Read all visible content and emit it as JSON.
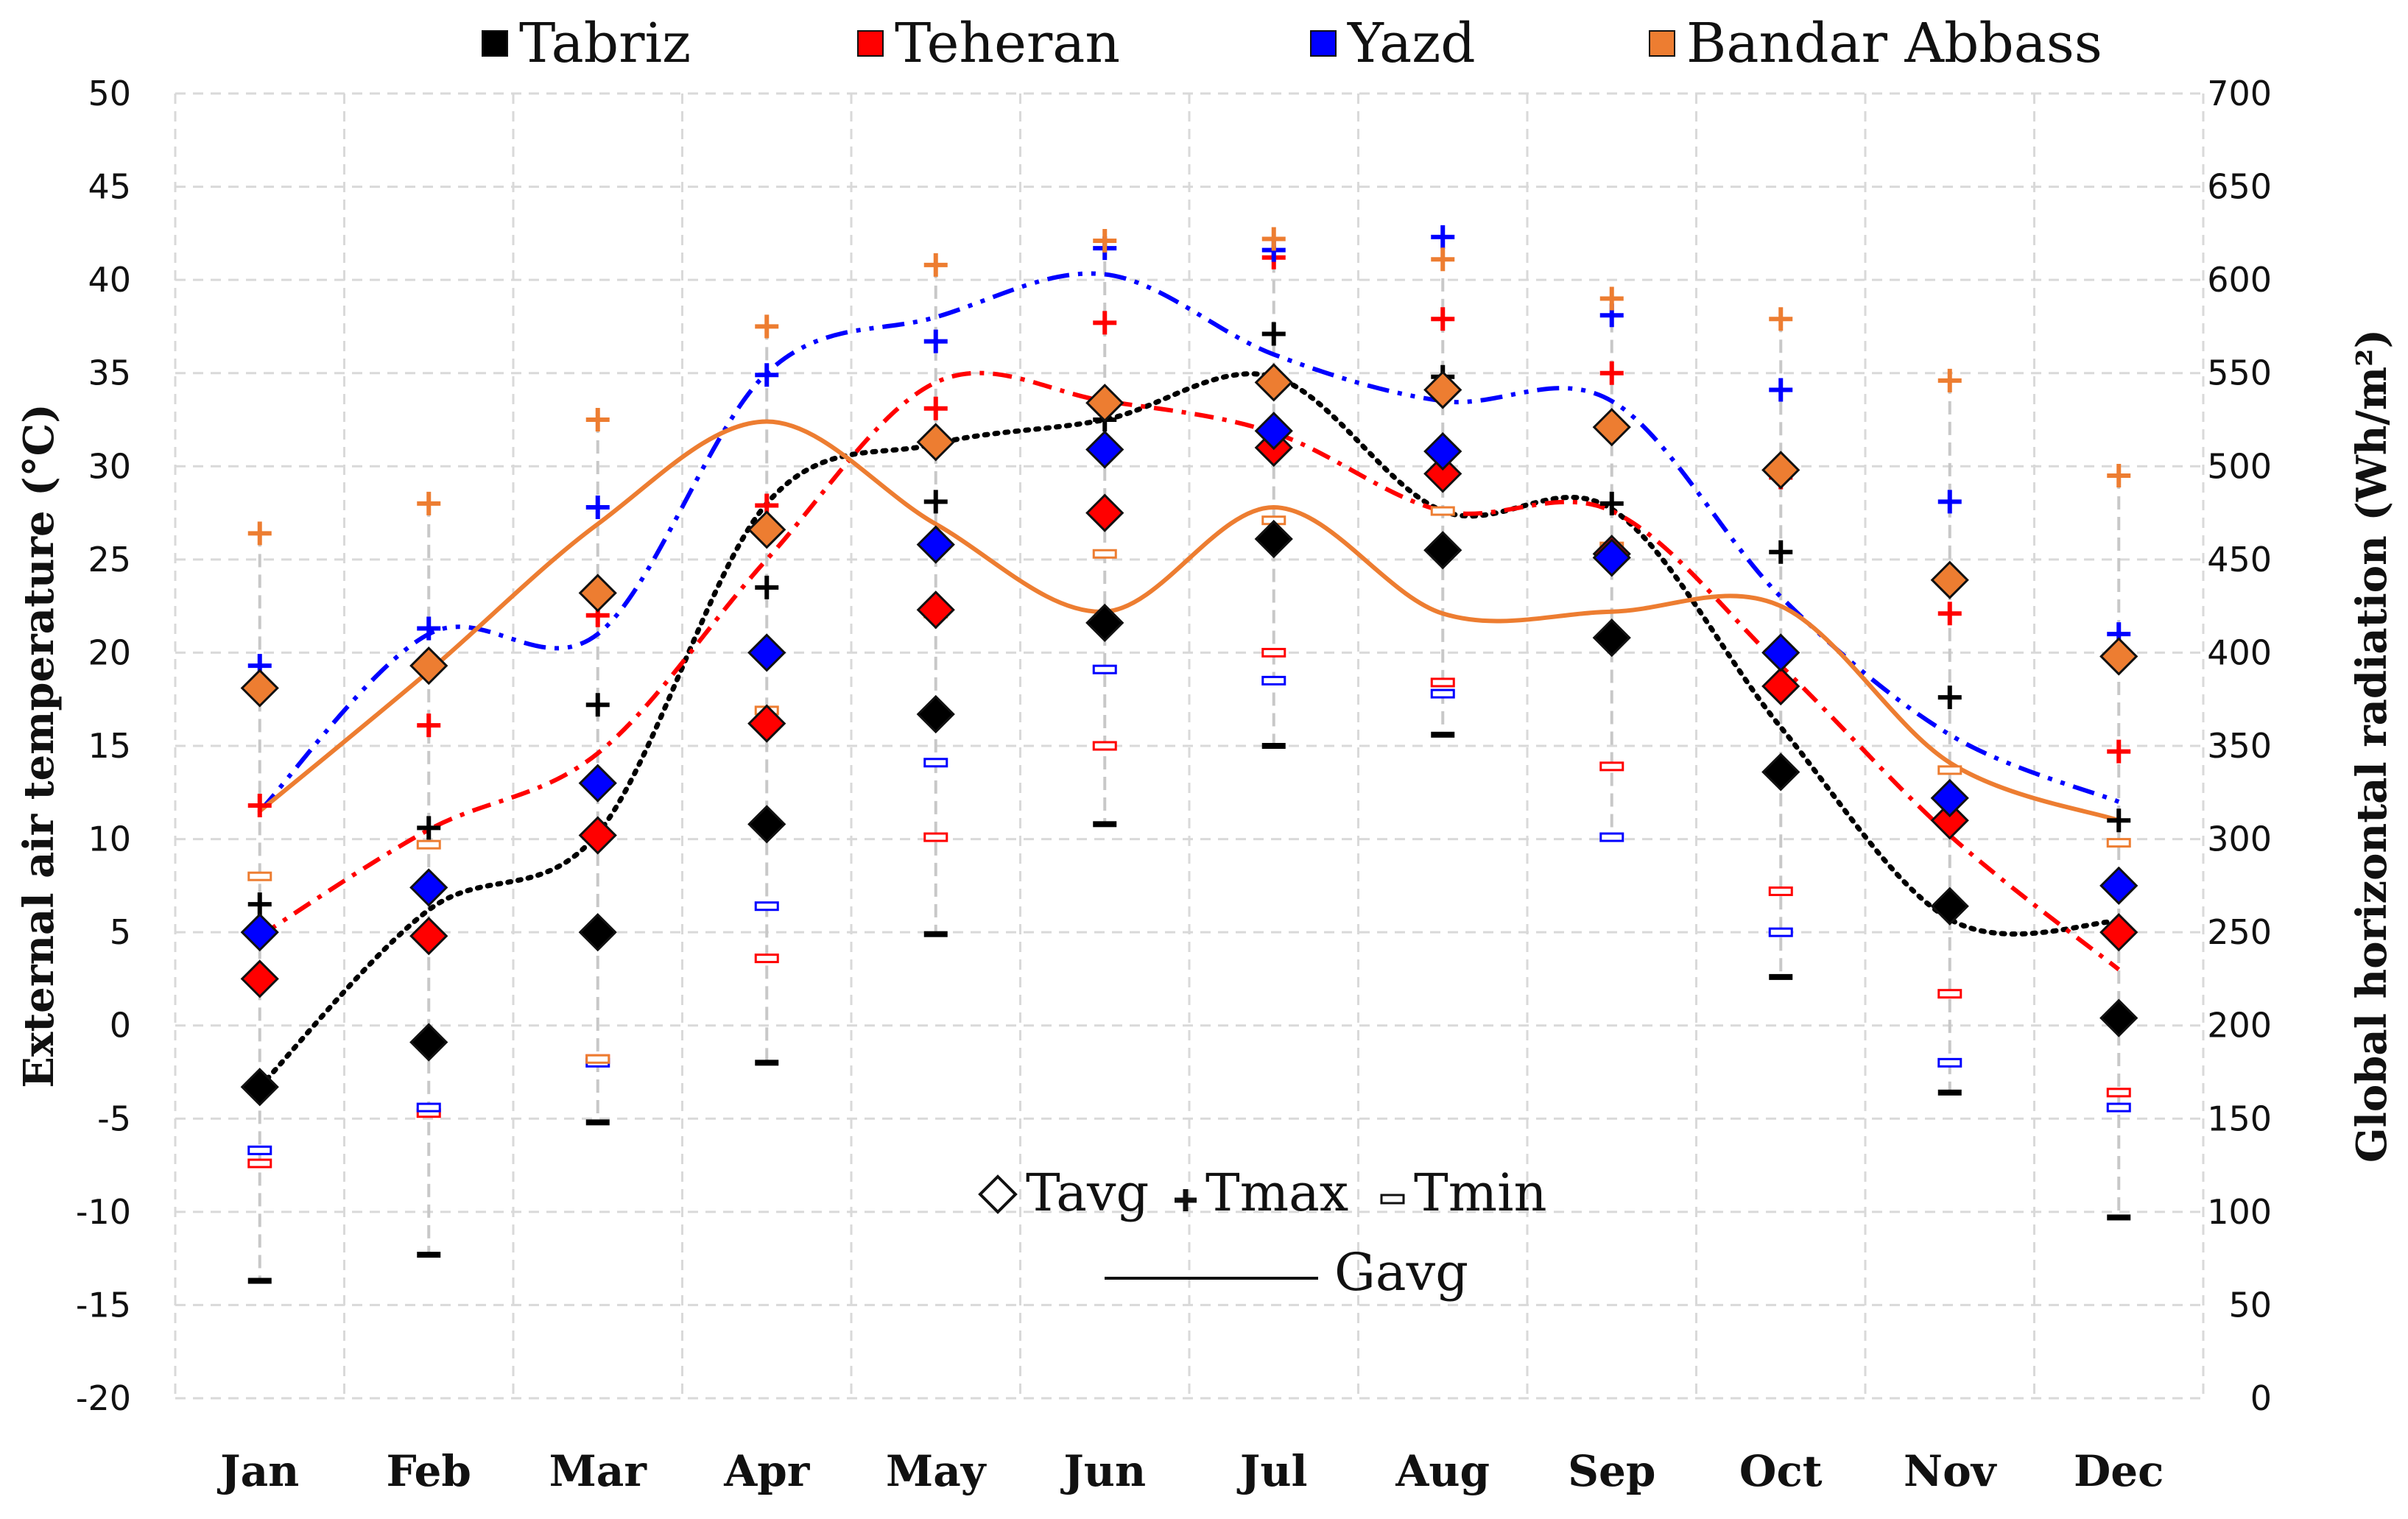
{
  "chart_data": {
    "type": "line",
    "categories": [
      "Jan",
      "Feb",
      "Mar",
      "Apr",
      "May",
      "Jun",
      "Jul",
      "Aug",
      "Sep",
      "Oct",
      "Nov",
      "Dec"
    ],
    "ylabel": "External air temperature (°C)",
    "y2label": "Global horizontal radiation (Wh/m²)",
    "ylim": [
      -20,
      50
    ],
    "y_ticks": [
      "50",
      "45",
      "40",
      "35",
      "30",
      "25",
      "20",
      "15",
      "10",
      "5",
      "0",
      "-5",
      "-10",
      "-15",
      "-20"
    ],
    "y2lim": [
      0,
      700
    ],
    "y2_ticks": [
      "700",
      "650",
      "600",
      "550",
      "500",
      "450",
      "400",
      "350",
      "300",
      "250",
      "200",
      "150",
      "100",
      "50",
      "0"
    ],
    "legend": {
      "cities": [
        "Tabriz",
        "Teheran",
        "Yazd",
        "Bandar Abbass"
      ],
      "tavg": "Tavg",
      "tmax": "Tmax",
      "tmin": "Tmin",
      "gavg": "Gavg"
    },
    "colors": {
      "Tabriz": "#000000",
      "Teheran": "#ff0000",
      "Yazd": "#0000ff",
      "Bandar Abbass": "#ed7d31",
      "grid": "#d9d9d9"
    },
    "series": [
      {
        "name": "Tabriz",
        "tavg": [
          -3.3,
          -0.9,
          5.0,
          10.8,
          16.7,
          21.6,
          26.1,
          25.5,
          20.8,
          13.6,
          6.4,
          0.4
        ],
        "tmax": [
          6.5,
          10.6,
          17.2,
          23.5,
          28.1,
          32.5,
          37.1,
          34.8,
          28.0,
          25.4,
          17.6,
          11.0
        ],
        "tmin": [
          -13.7,
          -12.3,
          -5.2,
          -2.0,
          4.9,
          10.8,
          15.0,
          15.6,
          10.1,
          2.6,
          -3.6,
          -10.3
        ],
        "gavg": [
          167,
          262,
          303,
          480,
          512,
          525,
          548,
          476,
          477,
          360,
          257,
          256
        ]
      },
      {
        "name": "Teheran",
        "tavg": [
          2.5,
          4.8,
          10.2,
          16.2,
          22.3,
          27.5,
          31.0,
          29.6,
          25.3,
          18.2,
          11.0,
          5.0
        ],
        "tmax": [
          11.8,
          16.1,
          22.0,
          27.9,
          33.1,
          37.7,
          41.2,
          37.9,
          35.0,
          29.4,
          22.1,
          14.7
        ],
        "tmin": [
          -7.4,
          -4.7,
          -1.8,
          3.6,
          10.1,
          15.0,
          20.0,
          18.4,
          13.9,
          7.2,
          1.7,
          -3.6
        ],
        "gavg": [
          248,
          305,
          346,
          450,
          545,
          535,
          518,
          476,
          476,
          393,
          302,
          230
        ]
      },
      {
        "name": "Yazd",
        "tavg": [
          5.0,
          7.4,
          13.0,
          20.0,
          25.8,
          30.9,
          31.9,
          30.8,
          25.1,
          20.0,
          12.2,
          7.5
        ],
        "tmax": [
          19.3,
          21.3,
          27.8,
          34.9,
          36.7,
          41.7,
          41.6,
          42.3,
          38.1,
          34.1,
          28.1,
          21.0
        ],
        "tmin": [
          -6.7,
          -4.4,
          -2.0,
          6.4,
          14.1,
          19.1,
          18.5,
          17.8,
          10.1,
          5.0,
          -2.0,
          -4.4
        ],
        "gavg": [
          315,
          410,
          410,
          550,
          580,
          603,
          560,
          535,
          535,
          430,
          356,
          320
        ]
      },
      {
        "name": "Bandar Abbass",
        "tavg": [
          18.1,
          19.3,
          23.2,
          26.6,
          31.3,
          33.4,
          34.5,
          34.1,
          32.1,
          29.8,
          23.9,
          19.8
        ],
        "tmax": [
          26.4,
          28.0,
          32.5,
          37.5,
          40.8,
          42.1,
          42.2,
          41.1,
          39.0,
          37.9,
          34.6,
          29.5
        ],
        "tmin": [
          8.0,
          9.7,
          -1.8,
          16.9,
          22.1,
          25.3,
          27.1,
          27.6,
          25.7,
          20.1,
          13.7,
          9.8
        ],
        "gavg": [
          315,
          390,
          469,
          524,
          469,
          422,
          478,
          421,
          422,
          425,
          341,
          310
        ]
      }
    ]
  }
}
